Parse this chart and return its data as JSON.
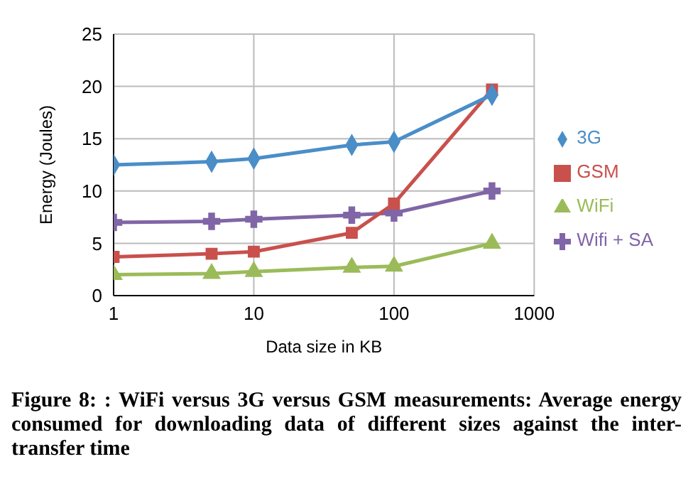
{
  "chart_data": {
    "type": "line",
    "xlabel": "Data size in KB",
    "ylabel": "Energy (Joules)",
    "log": "x",
    "x": [
      1,
      5,
      10,
      50,
      100,
      500
    ],
    "series": [
      {
        "name": "3G",
        "color": "#4a8ec8",
        "marker": "diamond",
        "values": [
          12.5,
          12.8,
          13.1,
          14.4,
          14.7,
          19.2
        ]
      },
      {
        "name": "GSM",
        "color": "#c9504c",
        "marker": "square",
        "values": [
          3.7,
          4.0,
          4.2,
          6.0,
          8.8,
          19.7
        ]
      },
      {
        "name": "WiFi",
        "color": "#9bbb59",
        "marker": "triangle",
        "values": [
          2.0,
          2.1,
          2.3,
          2.7,
          2.8,
          5.0
        ]
      },
      {
        "name": "Wifi + SA",
        "color": "#8066a6",
        "marker": "cross",
        "values": [
          7.0,
          7.1,
          7.3,
          7.7,
          7.9,
          10.0
        ]
      }
    ],
    "xlim": [
      1,
      1000
    ],
    "xticks": [
      1,
      10,
      100,
      1000
    ],
    "ylim": [
      0,
      25
    ],
    "yticks": [
      0,
      5,
      10,
      15,
      20,
      25
    ],
    "grid": true,
    "legend": "right",
    "line_style": "solid",
    "annotations": [
      "Figure 8: : WiFi versus 3G versus GSM measurements: Average energy consumed for downloading data of different sizes against the inter-transfer time"
    ]
  }
}
